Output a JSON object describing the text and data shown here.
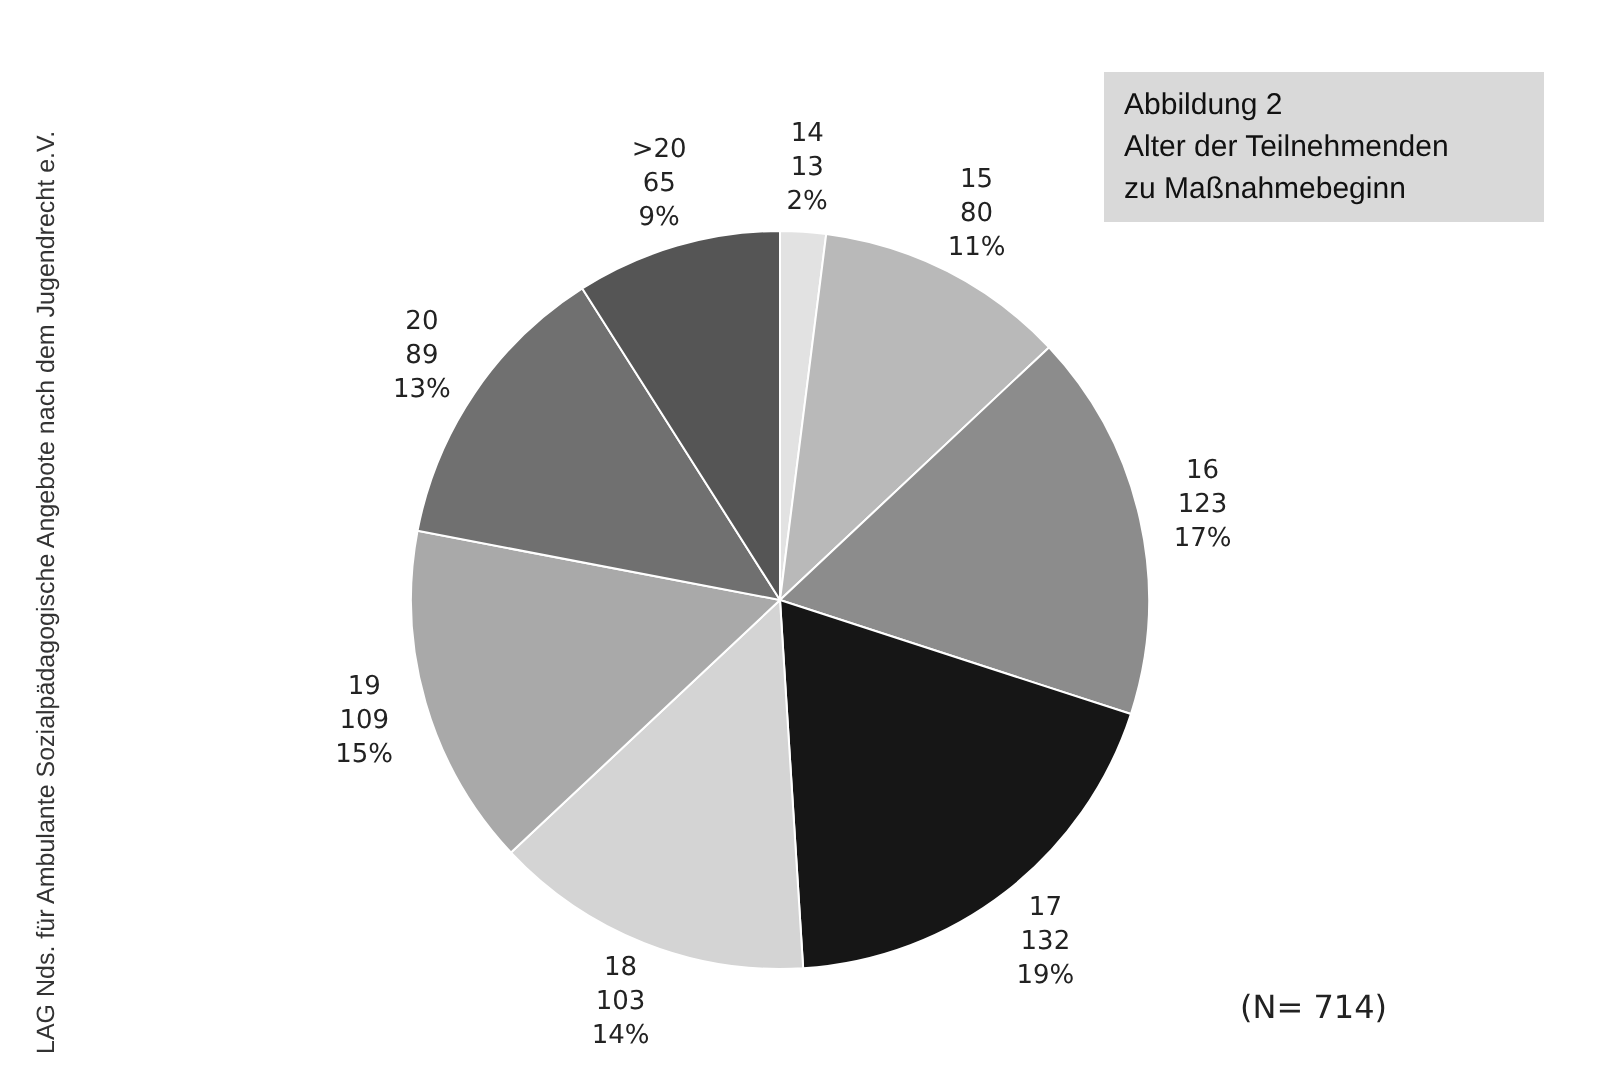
{
  "chart_data": {
    "type": "pie",
    "title": "Abbildung 2\nAlter der Teilnehmenden\nzu Maßnahmebeginn",
    "categories": [
      "14",
      "15",
      "16",
      "17",
      "18",
      "19",
      "20",
      ">20"
    ],
    "values": [
      2,
      11,
      17,
      19,
      14,
      15,
      13,
      9
    ],
    "value_labels": [
      "13\n2%",
      "80\n11%",
      "123\n17%",
      "132\n19%",
      "103\n14%",
      "109\n15%",
      "89\n13%",
      "65\n9%"
    ],
    "colors": [
      "#e2e2e2",
      "#b9b9b9",
      "#8c8c8c",
      "#161616",
      "#d4d4d4",
      "#a9a9a9",
      "#707070",
      "#555555"
    ],
    "legend": false,
    "annotations": [
      "(N= 714)",
      "LAG Nds. für Ambulante Sozialpädagogische Angebote nach dem Jugendrecht e.V."
    ]
  }
}
